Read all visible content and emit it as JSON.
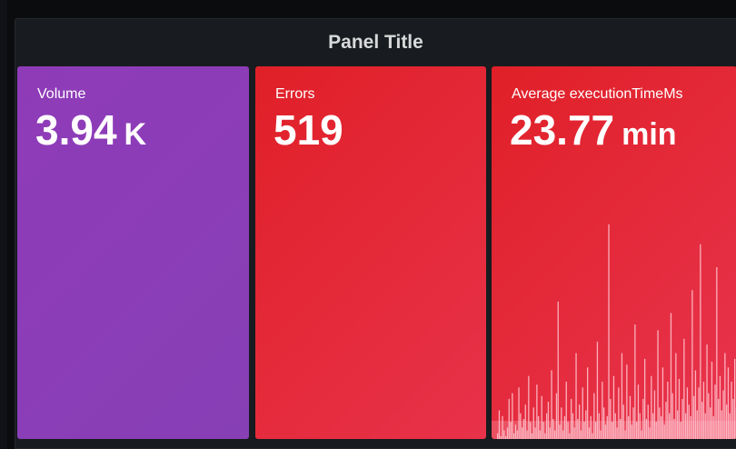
{
  "panel": {
    "title": "Panel Title"
  },
  "stats": {
    "volume": {
      "label": "Volume",
      "value": "3.94",
      "unit": "K",
      "color": "#8a3db6"
    },
    "errors": {
      "label": "Errors",
      "value": "519",
      "unit": "",
      "color": "#e02f44"
    },
    "avg": {
      "label": "Average executionTimeMs",
      "value": "23.77",
      "unit": "min",
      "color": "#e02f44"
    }
  },
  "sparkline": {
    "values": [
      2,
      10,
      1,
      8,
      3,
      1,
      4,
      14,
      6,
      16,
      2,
      5,
      3,
      18,
      9,
      4,
      7,
      12,
      3,
      22,
      6,
      2,
      11,
      4,
      19,
      8,
      3,
      15,
      6,
      2,
      9,
      13,
      4,
      24,
      7,
      3,
      16,
      48,
      5,
      11,
      3,
      8,
      20,
      6,
      2,
      14,
      9,
      4,
      30,
      7,
      12,
      3,
      18,
      6,
      10,
      25,
      4,
      8,
      2,
      16,
      6,
      34,
      9,
      3,
      20,
      11,
      5,
      8,
      75,
      14,
      6,
      22,
      9,
      4,
      18,
      7,
      30,
      12,
      3,
      26,
      8,
      15,
      5,
      11,
      40,
      6,
      19,
      9,
      3,
      14,
      28,
      7,
      12,
      4,
      22,
      9,
      17,
      6,
      38,
      11,
      8,
      25,
      5,
      13,
      20,
      9,
      44,
      16,
      7,
      30,
      10,
      21,
      6,
      14,
      35,
      9,
      18,
      12,
      8,
      52,
      15,
      24,
      10,
      18,
      68,
      13,
      20,
      9,
      33,
      16,
      11,
      27,
      8,
      19,
      60,
      14,
      22,
      10,
      17,
      30,
      12,
      25,
      9,
      20,
      14,
      28,
      11,
      18,
      24,
      13
    ]
  }
}
